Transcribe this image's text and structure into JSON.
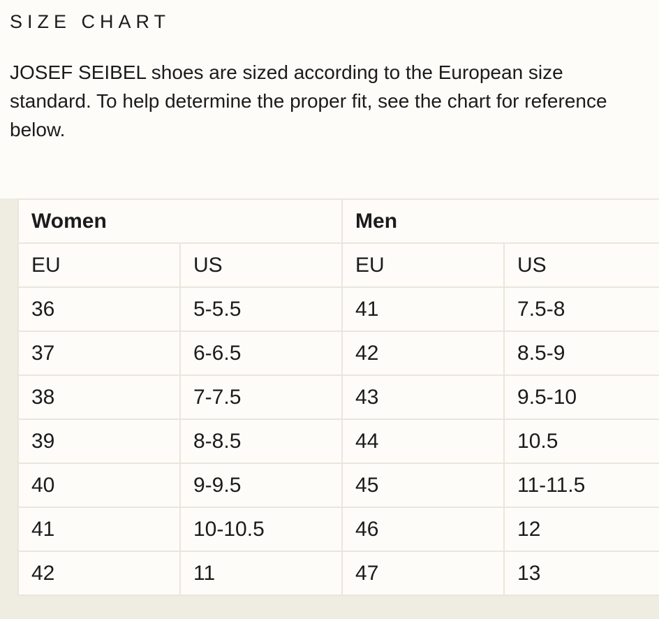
{
  "page": {
    "title": "SIZE CHART",
    "description": "JOSEF SEIBEL shoes are sized according to the European size standard. To help determine the proper fit, see the chart for reference below."
  },
  "size_chart": {
    "groups": [
      {
        "label": "Women"
      },
      {
        "label": "Men"
      }
    ],
    "columns": [
      "EU",
      "US",
      "EU",
      "US"
    ],
    "rows": [
      [
        "36",
        "5-5.5",
        "41",
        "7.5-8"
      ],
      [
        "37",
        "6-6.5",
        "42",
        "8.5-9"
      ],
      [
        "38",
        "7-7.5",
        "43",
        "9.5-10"
      ],
      [
        "39",
        "8-8.5",
        "44",
        "10.5"
      ],
      [
        "40",
        "9-9.5",
        "45",
        "11-11.5"
      ],
      [
        "41",
        "10-10.5",
        "46",
        "12"
      ],
      [
        "42",
        "11",
        "47",
        "13"
      ]
    ]
  },
  "colors": {
    "page_background": "#FDFCF9",
    "section_background": "#EFECE2",
    "table_border": "#E9E6DC",
    "cell_background": "#FDFCF9",
    "text": "#1B1B1B"
  }
}
